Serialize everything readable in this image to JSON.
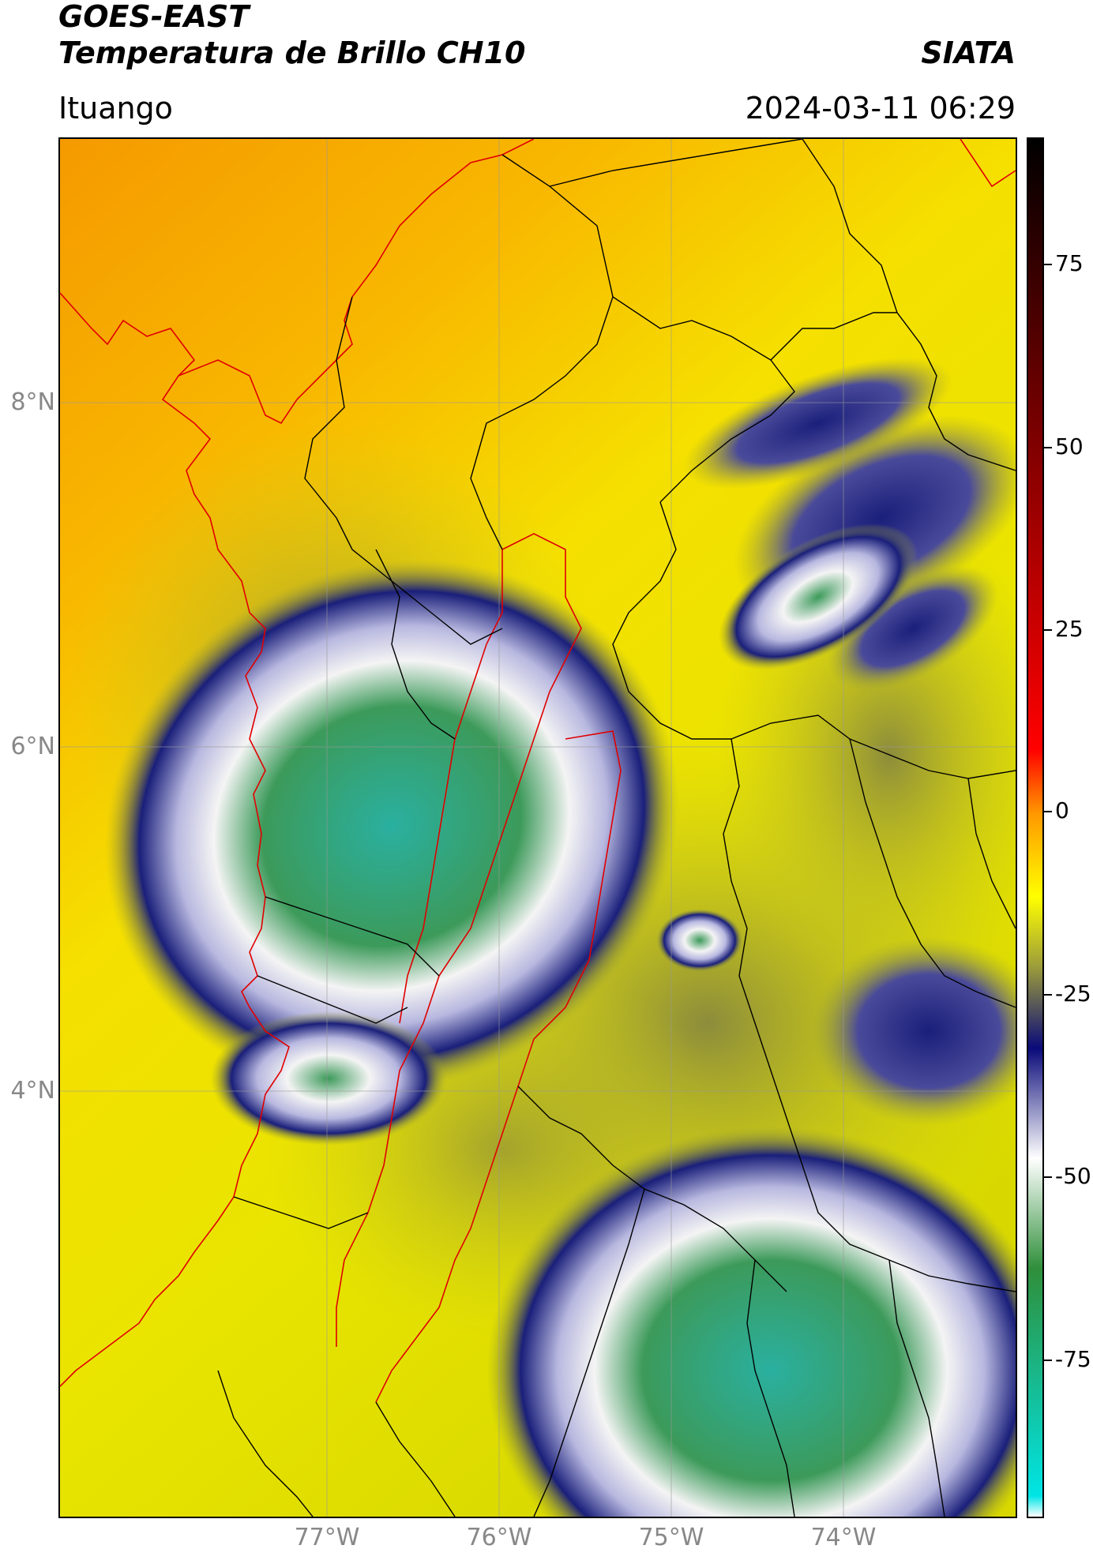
{
  "header": {
    "satellite": "GOES-EAST",
    "product": "Temperatura de Brillo CH10",
    "org": "SIATA",
    "region": "Ituango",
    "timestamp": "2024-03-11 06:29"
  },
  "map": {
    "lat_labels": [
      "8°N",
      "6°N",
      "4°N"
    ],
    "lon_labels": [
      "77°W",
      "76°W",
      "75°W",
      "74°W"
    ],
    "colors": {
      "warm": "#f5a000",
      "mid_warm": "#f8c800",
      "yellow": "#f3f000",
      "olive": "#a3a830",
      "navy": "#1a1f7a",
      "lavender": "#b8b8e0",
      "white": "#f4f4f4",
      "green": "#3c9a5a",
      "teal": "#2ab0a0",
      "boundary_black": "#000000",
      "boundary_red": "#e00000"
    }
  },
  "colorbar": {
    "ticks": [
      "75",
      "50",
      "25",
      "0",
      "-25",
      "-50",
      "-75"
    ],
    "stops": [
      "#000000",
      "#ff0000",
      "#ff9900",
      "#ffff00",
      "#9e9e3a",
      "#0a0a7a",
      "#ffffff",
      "#2f8f3a",
      "#00e5e5",
      "#ffffff"
    ]
  }
}
